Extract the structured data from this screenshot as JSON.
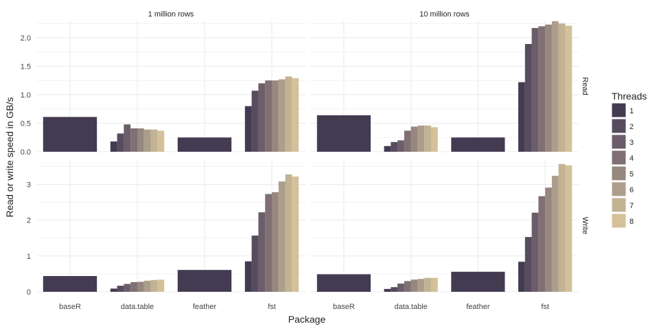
{
  "chart_data": {
    "type": "bar",
    "xlabel": "Package",
    "ylabel": "Read or write speed in GB/s",
    "col_facets": [
      "1 million rows",
      "10 million rows"
    ],
    "row_facets": [
      "Read",
      "Write"
    ],
    "categories": [
      "baseR",
      "data.table",
      "feather",
      "fst"
    ],
    "legend": {
      "title": "Threads",
      "position": "right",
      "entries": [
        {
          "label": "1",
          "color": "#433b52"
        },
        {
          "label": "2",
          "color": "#574b5e"
        },
        {
          "label": "3",
          "color": "#6b5d69"
        },
        {
          "label": "4",
          "color": "#807073"
        },
        {
          "label": "5",
          "color": "#96877f"
        },
        {
          "label": "6",
          "color": "#ad9e8c"
        },
        {
          "label": "7",
          "color": "#c2b393"
        },
        {
          "label": "8",
          "color": "#d5c199"
        }
      ]
    },
    "row_axes": [
      {
        "ylim": [
          0,
          2.3
        ],
        "ticks": [
          0,
          0.5,
          1,
          1.5,
          2
        ],
        "tick_labels": [
          "0.0",
          "0.5",
          "1.0",
          "1.5",
          "2.0"
        ]
      },
      {
        "ylim": [
          0,
          3.7
        ],
        "ticks": [
          0,
          1,
          2,
          3
        ],
        "tick_labels": [
          "0",
          "1",
          "2",
          "3"
        ]
      }
    ],
    "grid": true,
    "panels": [
      {
        "column": "1 million rows",
        "row": "Read",
        "values": {
          "baseR": [
            0.61
          ],
          "data.table": [
            0.18,
            0.32,
            0.48,
            0.41,
            0.41,
            0.39,
            0.39,
            0.37
          ],
          "feather": [
            0.25
          ],
          "fst": [
            0.8,
            1.07,
            1.2,
            1.25,
            1.25,
            1.27,
            1.32,
            1.29
          ]
        }
      },
      {
        "column": "10 million rows",
        "row": "Read",
        "values": {
          "baseR": [
            0.64
          ],
          "data.table": [
            0.1,
            0.17,
            0.2,
            0.37,
            0.44,
            0.46,
            0.46,
            0.43
          ],
          "feather": [
            0.25
          ],
          "fst": [
            1.22,
            1.89,
            2.17,
            2.2,
            2.23,
            2.29,
            2.25,
            2.21
          ]
        }
      },
      {
        "column": "1 million rows",
        "row": "Write",
        "values": {
          "baseR": [
            0.44
          ],
          "data.table": [
            0.09,
            0.17,
            0.22,
            0.27,
            0.28,
            0.31,
            0.33,
            0.34
          ],
          "feather": [
            0.61
          ],
          "fst": [
            0.85,
            1.57,
            2.22,
            2.73,
            2.78,
            3.08,
            3.28,
            3.22
          ]
        }
      },
      {
        "column": "10 million rows",
        "row": "Write",
        "values": {
          "baseR": [
            0.49
          ],
          "data.table": [
            0.08,
            0.13,
            0.23,
            0.3,
            0.34,
            0.36,
            0.39,
            0.39
          ],
          "feather": [
            0.56
          ],
          "fst": [
            0.84,
            1.53,
            2.21,
            2.67,
            2.91,
            3.24,
            3.57,
            3.53
          ]
        }
      }
    ]
  }
}
